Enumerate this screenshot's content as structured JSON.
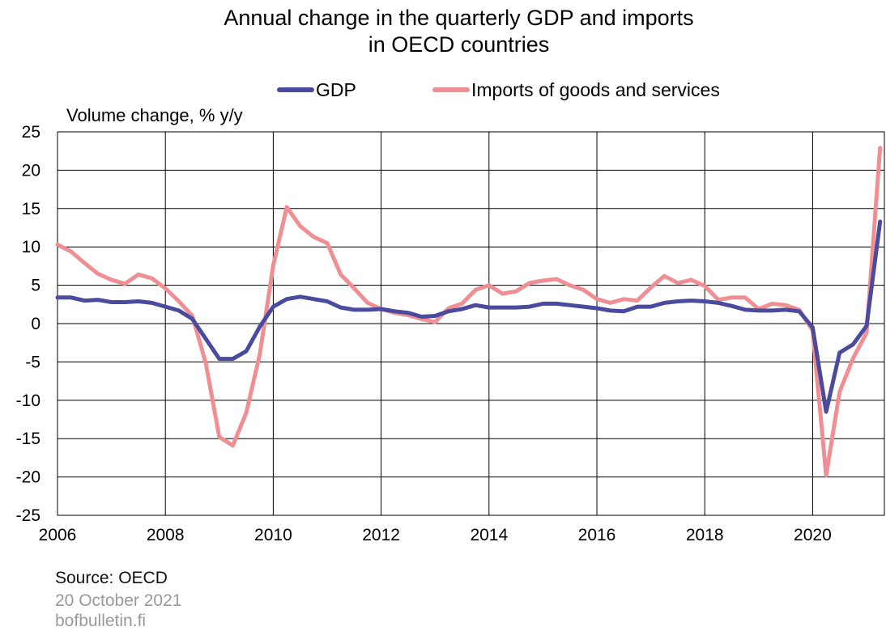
{
  "chart_data": {
    "type": "line",
    "title": "Annual change in the quarterly GDP and imports in OECD countries",
    "title_lines": [
      "Annual change in the quarterly GDP and imports",
      "in OECD countries"
    ],
    "ylabel": "Volume change, % y/y",
    "xlabel": "",
    "ylim": [
      -25,
      25
    ],
    "yticks": [
      25,
      20,
      15,
      10,
      5,
      0,
      -5,
      -10,
      -15,
      -20,
      -25
    ],
    "xlim": [
      2006,
      2021.33
    ],
    "xticks": [
      2006,
      2008,
      2010,
      2012,
      2014,
      2016,
      2018,
      2020
    ],
    "grid": true,
    "legend_position": "top",
    "series": [
      {
        "name": "GDP",
        "color": "#4a4a9e",
        "x": [
          2006,
          2006.25,
          2006.5,
          2006.75,
          2007,
          2007.25,
          2007.5,
          2007.75,
          2008,
          2008.25,
          2008.5,
          2008.75,
          2009,
          2009.25,
          2009.5,
          2009.75,
          2010,
          2010.25,
          2010.5,
          2010.75,
          2011,
          2011.25,
          2011.5,
          2011.75,
          2012,
          2012.25,
          2012.5,
          2012.75,
          2013,
          2013.25,
          2013.5,
          2013.75,
          2014,
          2014.25,
          2014.5,
          2014.75,
          2015,
          2015.25,
          2015.5,
          2015.75,
          2016,
          2016.25,
          2016.5,
          2016.75,
          2017,
          2017.25,
          2017.5,
          2017.75,
          2018,
          2018.25,
          2018.5,
          2018.75,
          2019,
          2019.25,
          2019.5,
          2019.75,
          2020,
          2020.25,
          2020.5,
          2020.75,
          2021,
          2021.25
        ],
        "values": [
          3.4,
          3.4,
          3.0,
          3.1,
          2.8,
          2.8,
          2.9,
          2.7,
          2.2,
          1.7,
          0.6,
          -2.0,
          -4.6,
          -4.6,
          -3.6,
          -0.4,
          2.2,
          3.2,
          3.5,
          3.2,
          2.9,
          2.1,
          1.8,
          1.8,
          1.9,
          1.6,
          1.4,
          0.9,
          1.0,
          1.6,
          1.9,
          2.4,
          2.1,
          2.1,
          2.1,
          2.2,
          2.6,
          2.6,
          2.4,
          2.2,
          2.0,
          1.7,
          1.6,
          2.2,
          2.2,
          2.7,
          2.9,
          3.0,
          2.9,
          2.7,
          2.3,
          1.8,
          1.7,
          1.7,
          1.8,
          1.6,
          -0.5,
          -11.5,
          -3.8,
          -2.7,
          -0.3,
          13.3
        ]
      },
      {
        "name": "Imports of goods and services",
        "color": "#ef8f93",
        "x": [
          2006,
          2006.25,
          2006.5,
          2006.75,
          2007,
          2007.25,
          2007.5,
          2007.75,
          2008,
          2008.25,
          2008.5,
          2008.75,
          2009,
          2009.25,
          2009.5,
          2009.75,
          2010,
          2010.25,
          2010.5,
          2010.75,
          2011,
          2011.25,
          2011.5,
          2011.75,
          2012,
          2012.25,
          2012.5,
          2012.75,
          2013,
          2013.25,
          2013.5,
          2013.75,
          2014,
          2014.25,
          2014.5,
          2014.75,
          2015,
          2015.25,
          2015.5,
          2015.75,
          2016,
          2016.25,
          2016.5,
          2016.75,
          2017,
          2017.25,
          2017.5,
          2017.75,
          2018,
          2018.25,
          2018.5,
          2018.75,
          2019,
          2019.25,
          2019.5,
          2019.75,
          2020,
          2020.25,
          2020.5,
          2020.75,
          2021,
          2021.25
        ],
        "values": [
          10.3,
          9.4,
          7.9,
          6.5,
          5.7,
          5.2,
          6.4,
          5.9,
          4.6,
          2.9,
          1.0,
          -5.2,
          -14.8,
          -15.9,
          -11.6,
          -4.0,
          7.6,
          15.2,
          12.7,
          11.3,
          10.5,
          6.4,
          4.6,
          2.7,
          1.9,
          1.4,
          1.1,
          0.6,
          0.2,
          2.0,
          2.6,
          4.4,
          5.0,
          3.9,
          4.2,
          5.3,
          5.6,
          5.8,
          5.0,
          4.4,
          3.2,
          2.7,
          3.2,
          3.0,
          4.7,
          6.2,
          5.3,
          5.7,
          4.9,
          3.1,
          3.4,
          3.4,
          1.9,
          2.6,
          2.4,
          1.8,
          -0.9,
          -19.8,
          -8.9,
          -4.5,
          -1.2,
          22.9
        ]
      }
    ]
  },
  "footer": {
    "source": "Source: OECD",
    "date": "20 October 2021",
    "site": "bofbulletin.fi"
  }
}
